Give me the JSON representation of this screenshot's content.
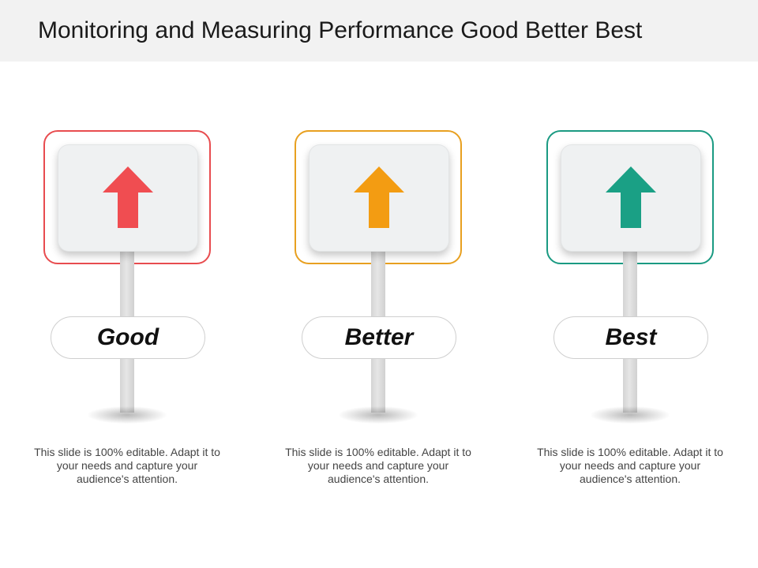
{
  "title": "Monitoring and Measuring Performance Good Better Best",
  "signs": [
    {
      "label": "Good",
      "color": "#e84c4f",
      "arrow_color": "#f04d51",
      "icon": "arrow-up-icon",
      "description": "This slide is 100% editable. Adapt it to your needs and capture your audience's attention."
    },
    {
      "label": "Better",
      "color": "#e8a020",
      "arrow_color": "#f39c12",
      "icon": "arrow-up-icon",
      "description": "This slide is 100% editable. Adapt it to your needs and capture your audience's attention."
    },
    {
      "label": "Best",
      "color": "#1a9a82",
      "arrow_color": "#1aa085",
      "icon": "arrow-up-icon",
      "description": "This slide is 100% editable. Adapt it to your needs and capture your audience's attention."
    }
  ]
}
